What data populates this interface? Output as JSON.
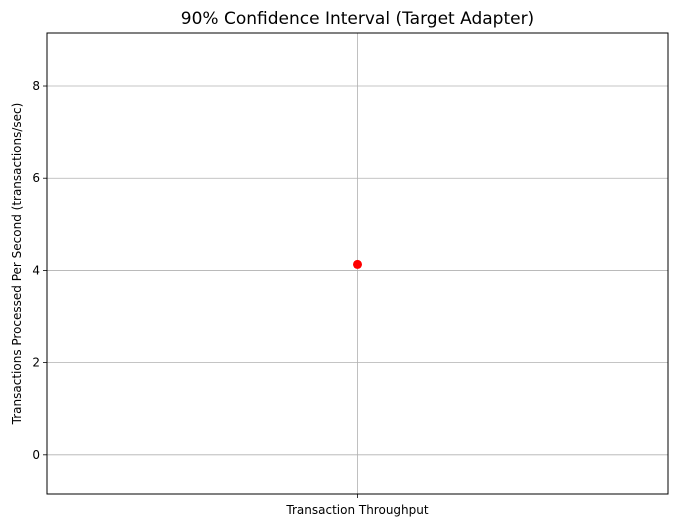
{
  "chart_data": {
    "type": "scatter",
    "title": "90% Confidence Interval (Target Adapter)",
    "xlabel": "",
    "ylabel": "Transactions Processed Per Second (transactions/sec)",
    "categories": [
      "Transaction Throughput"
    ],
    "series": [
      {
        "values": [
          4.13
        ],
        "color": "#ff0000"
      }
    ],
    "ylim": [
      -0.85,
      9.15
    ],
    "yticks": [
      0,
      2,
      4,
      6,
      8
    ],
    "grid": true
  }
}
